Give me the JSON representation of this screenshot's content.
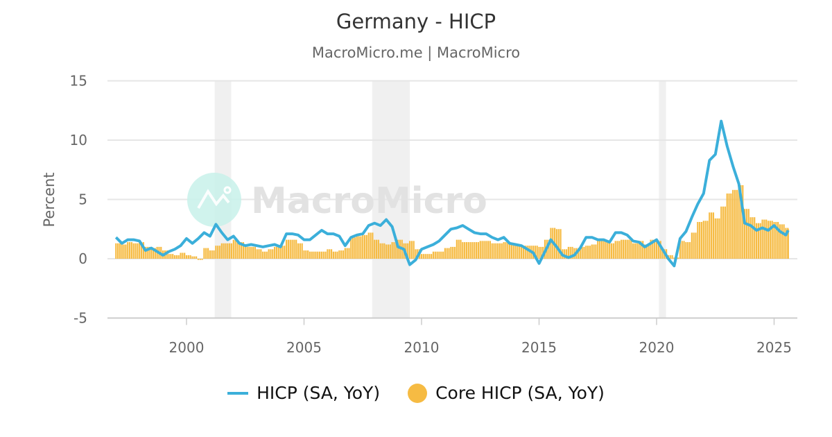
{
  "header": {
    "title": "Germany - HICP",
    "subtitle": "MacroMicro.me | MacroMicro"
  },
  "watermark": {
    "text": "MacroMicro",
    "logo": "macromicro-logo-icon"
  },
  "colors": {
    "hicp_line": "#3bafda",
    "core_bar": "#f6bb43",
    "recession_band": "#f0f0f0",
    "grid": "#e6e6e6",
    "axis_text": "#666666",
    "watermark_circle": "#c8f1ea"
  },
  "legend": {
    "items": [
      {
        "label": "HICP (SA, YoY)",
        "type": "line"
      },
      {
        "label": "Core HICP (SA, YoY)",
        "type": "bar"
      }
    ]
  },
  "chart_data": {
    "type": "line+bar",
    "title": "Germany - HICP",
    "subtitle": "MacroMicro.me | MacroMicro",
    "xlabel": "",
    "ylabel": "Percent",
    "ylim": [
      -5,
      15
    ],
    "yticks": [
      -5,
      0,
      5,
      10,
      15
    ],
    "xlim": [
      1996.6,
      2026.0
    ],
    "xticks": [
      2000,
      2005,
      2010,
      2015,
      2020,
      2025
    ],
    "grid": true,
    "legend_position": "bottom",
    "recession_bands": [
      [
        2001.2,
        2001.9
      ],
      [
        2007.9,
        2009.5
      ],
      [
        2020.1,
        2020.4
      ]
    ],
    "x": [
      1997.0,
      1997.25,
      1997.5,
      1997.75,
      1998.0,
      1998.25,
      1998.5,
      1998.75,
      1999.0,
      1999.25,
      1999.5,
      1999.75,
      2000.0,
      2000.25,
      2000.5,
      2000.75,
      2001.0,
      2001.25,
      2001.5,
      2001.75,
      2002.0,
      2002.25,
      2002.5,
      2002.75,
      2003.0,
      2003.25,
      2003.5,
      2003.75,
      2004.0,
      2004.25,
      2004.5,
      2004.75,
      2005.0,
      2005.25,
      2005.5,
      2005.75,
      2006.0,
      2006.25,
      2006.5,
      2006.75,
      2007.0,
      2007.25,
      2007.5,
      2007.75,
      2008.0,
      2008.25,
      2008.5,
      2008.75,
      2009.0,
      2009.25,
      2009.5,
      2009.75,
      2010.0,
      2010.25,
      2010.5,
      2010.75,
      2011.0,
      2011.25,
      2011.5,
      2011.75,
      2012.0,
      2012.25,
      2012.5,
      2012.75,
      2013.0,
      2013.25,
      2013.5,
      2013.75,
      2014.0,
      2014.25,
      2014.5,
      2014.75,
      2015.0,
      2015.25,
      2015.5,
      2015.75,
      2016.0,
      2016.25,
      2016.5,
      2016.75,
      2017.0,
      2017.25,
      2017.5,
      2017.75,
      2018.0,
      2018.25,
      2018.5,
      2018.75,
      2019.0,
      2019.25,
      2019.5,
      2019.75,
      2020.0,
      2020.25,
      2020.5,
      2020.75,
      2021.0,
      2021.25,
      2021.5,
      2021.75,
      2022.0,
      2022.25,
      2022.5,
      2022.75,
      2023.0,
      2023.25,
      2023.5,
      2023.75,
      2024.0,
      2024.25,
      2024.5,
      2024.75,
      2025.0,
      2025.25,
      2025.5,
      2025.6
    ],
    "series": [
      {
        "name": "HICP (SA, YoY)",
        "type": "line",
        "values": [
          1.8,
          1.3,
          1.6,
          1.6,
          1.5,
          0.7,
          0.9,
          0.6,
          0.3,
          0.6,
          0.8,
          1.1,
          1.7,
          1.3,
          1.7,
          2.2,
          1.9,
          2.9,
          2.2,
          1.6,
          1.9,
          1.3,
          1.1,
          1.2,
          1.1,
          1.0,
          1.1,
          1.2,
          1.0,
          2.1,
          2.1,
          2.0,
          1.6,
          1.6,
          2.0,
          2.4,
          2.1,
          2.1,
          1.9,
          1.1,
          1.8,
          2.0,
          2.1,
          2.8,
          3.0,
          2.8,
          3.3,
          2.7,
          1.0,
          0.8,
          -0.5,
          -0.1,
          0.8,
          1.0,
          1.2,
          1.5,
          2.0,
          2.5,
          2.6,
          2.8,
          2.5,
          2.2,
          2.1,
          2.1,
          1.8,
          1.6,
          1.8,
          1.3,
          1.2,
          1.1,
          0.8,
          0.5,
          -0.4,
          0.6,
          1.6,
          1.0,
          0.3,
          0.1,
          0.3,
          0.9,
          1.8,
          1.8,
          1.6,
          1.6,
          1.4,
          2.2,
          2.2,
          2.0,
          1.5,
          1.4,
          1.0,
          1.3,
          1.6,
          0.8,
          0.0,
          -0.6,
          1.7,
          2.3,
          3.5,
          4.6,
          5.5,
          8.3,
          8.8,
          11.6,
          9.5,
          7.8,
          6.3,
          3.0,
          2.8,
          2.4,
          2.6,
          2.4,
          2.8,
          2.3,
          2.0,
          2.4
        ]
      },
      {
        "name": "Core HICP (SA, YoY)",
        "type": "bar",
        "values": [
          1.3,
          1.2,
          1.4,
          1.3,
          1.4,
          1.0,
          0.9,
          1.0,
          0.7,
          0.4,
          0.3,
          0.5,
          0.3,
          0.2,
          -0.1,
          0.9,
          0.7,
          1.1,
          1.3,
          1.3,
          1.6,
          1.4,
          1.0,
          1.0,
          0.8,
          0.6,
          0.8,
          1.0,
          1.1,
          1.6,
          1.6,
          1.3,
          0.7,
          0.6,
          0.6,
          0.6,
          0.8,
          0.6,
          0.7,
          0.9,
          1.8,
          1.9,
          2.0,
          2.2,
          1.6,
          1.3,
          1.2,
          1.4,
          1.6,
          1.3,
          1.5,
          0.8,
          0.4,
          0.4,
          0.6,
          0.6,
          0.9,
          1.0,
          1.6,
          1.4,
          1.4,
          1.4,
          1.5,
          1.5,
          1.3,
          1.3,
          1.4,
          1.2,
          1.1,
          1.1,
          1.1,
          1.1,
          1.0,
          1.6,
          2.6,
          2.5,
          0.8,
          1.0,
          0.9,
          1.0,
          1.1,
          1.2,
          1.6,
          1.5,
          1.3,
          1.5,
          1.6,
          1.6,
          1.3,
          1.5,
          1.2,
          1.6,
          1.5,
          0.8,
          0.3,
          0.1,
          1.5,
          1.4,
          2.2,
          3.1,
          3.2,
          3.9,
          3.4,
          4.4,
          5.5,
          5.8,
          6.2,
          4.2,
          3.5,
          3.0,
          3.3,
          3.2,
          3.1,
          2.9,
          2.6,
          2.5
        ]
      }
    ]
  }
}
